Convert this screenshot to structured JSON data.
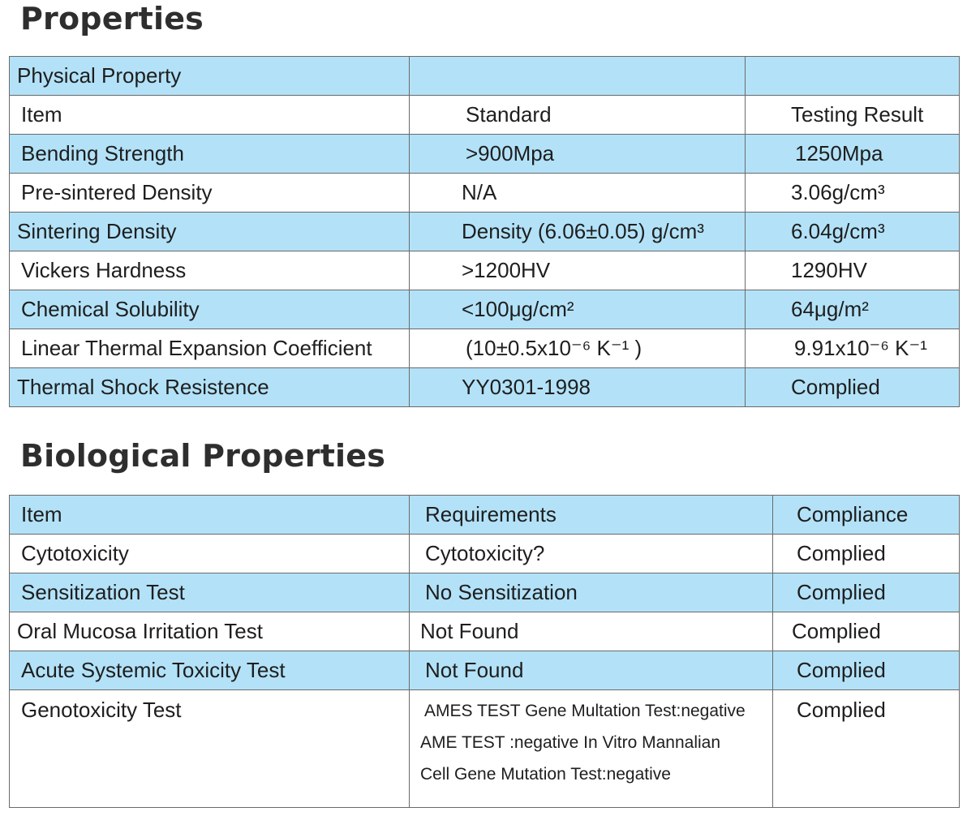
{
  "titles": {
    "properties": "Properties",
    "biological": "Biological Properties"
  },
  "physical": {
    "header": "Physical Property",
    "columns": [
      "Item",
      "Standard",
      "Testing Result"
    ],
    "rows": [
      {
        "item": "Bending Strength",
        "standard": ">900Mpa",
        "result": "1250Mpa"
      },
      {
        "item": "Pre-sintered Density",
        "standard": "N/A",
        "result": "3.06g/cm³"
      },
      {
        "item": "Sintering Density",
        "standard": "Density (6.06±0.05) g/cm³",
        "result": "6.04g/cm³"
      },
      {
        "item": "Vickers Hardness",
        "standard": ">1200HV",
        "result": "1290HV"
      },
      {
        "item": "Chemical Solubility",
        "standard": "<100μg/cm²",
        "result": "64μg/m²"
      },
      {
        "item": "Linear Thermal Expansion Coefficient",
        "standard": "(10±0.5x10⁻⁶ K⁻¹ )",
        "result": "9.91x10⁻⁶ K⁻¹"
      },
      {
        "item": "Thermal Shock Resistence",
        "standard": "YY0301-1998",
        "result": "Complied"
      }
    ]
  },
  "biological": {
    "columns": [
      "Item",
      "Requirements",
      "Compliance"
    ],
    "rows": [
      {
        "item": "Cytotoxicity",
        "requirement": "Cytotoxicity?",
        "compliance": "Complied"
      },
      {
        "item": "Sensitization Test",
        "requirement": "No Sensitization",
        "compliance": "Complied"
      },
      {
        "item": "Oral Mucosa Irritation Test",
        "requirement": "Not Found",
        "compliance": "Complied"
      },
      {
        "item": "Acute Systemic Toxicity Test",
        "requirement": "Not Found",
        "compliance": "Complied"
      },
      {
        "item": "Genotoxicity Test",
        "requirement_lines": [
          "AMES TEST Gene Multation Test:negative",
          "AME TEST :negative In Vitro Mannalian",
          "Cell Gene Mutation Test:negative"
        ],
        "compliance": "Complied"
      }
    ]
  },
  "colors": {
    "row_blue": "#b3e2f8",
    "border": "#6a6a6a",
    "title": "#2e2e2e"
  }
}
